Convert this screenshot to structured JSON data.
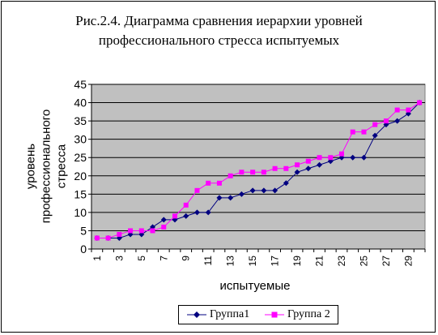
{
  "title_line1": "Рис.2.4.  Диаграмма сравнения  иерархии уровней",
  "title_line2": "профессионального стресса испытуемых",
  "chart_data": {
    "type": "line",
    "xlabel": "испытуемые",
    "ylabel_lines": [
      "уровень",
      "профессионального",
      "стресса"
    ],
    "x": [
      1,
      2,
      3,
      4,
      5,
      6,
      7,
      8,
      9,
      10,
      11,
      12,
      13,
      14,
      15,
      16,
      17,
      18,
      19,
      20,
      21,
      22,
      23,
      24,
      25,
      26,
      27,
      28,
      29,
      30
    ],
    "x_tick_labels": [
      "1",
      "3",
      "5",
      "7",
      "9",
      "11",
      "13",
      "15",
      "17",
      "19",
      "21",
      "23",
      "25",
      "27",
      "29"
    ],
    "ylim": [
      0,
      45
    ],
    "y_ticks": [
      0,
      5,
      10,
      15,
      20,
      25,
      30,
      35,
      40,
      45
    ],
    "grid": true,
    "legend_position": "bottom",
    "series": [
      {
        "name": "Группа1",
        "color": "#000080",
        "marker": "diamond",
        "values": [
          3,
          3,
          3,
          4,
          4,
          6,
          8,
          8,
          9,
          10,
          10,
          14,
          14,
          15,
          16,
          16,
          16,
          18,
          21,
          22,
          23,
          24,
          25,
          25,
          25,
          31,
          34,
          35,
          37,
          40
        ]
      },
      {
        "name": "Группа 2",
        "color": "#FF00FF",
        "marker": "square",
        "values": [
          3,
          3,
          4,
          5,
          5,
          5,
          6,
          9,
          12,
          16,
          18,
          18,
          20,
          21,
          21,
          21,
          22,
          22,
          23,
          24,
          25,
          25,
          26,
          32,
          32,
          34,
          35,
          38,
          38,
          40
        ]
      }
    ]
  }
}
